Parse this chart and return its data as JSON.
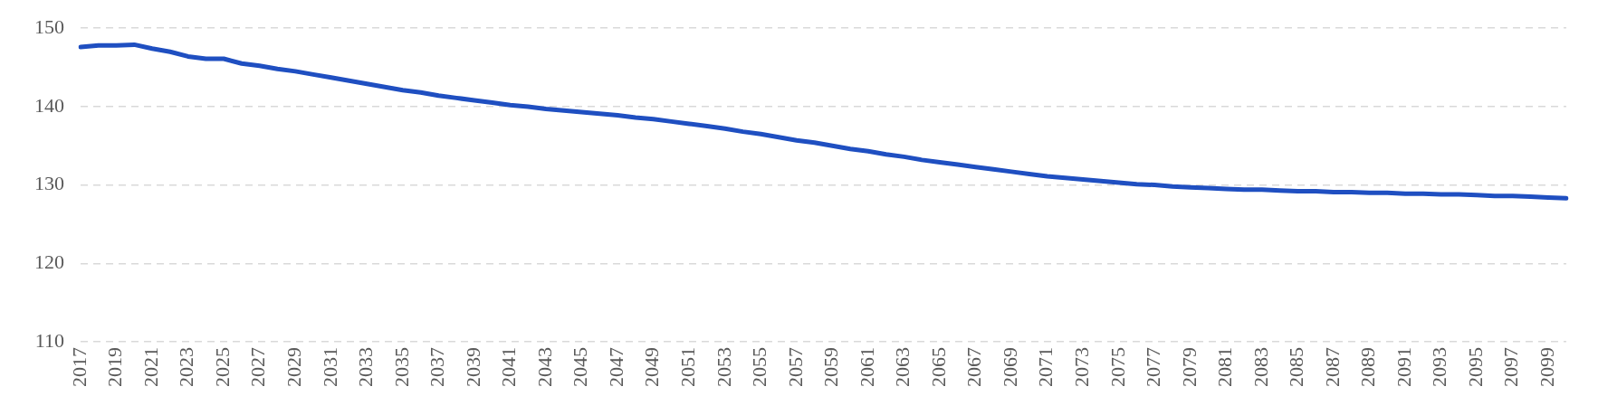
{
  "chart_data": {
    "type": "line",
    "categories": [
      "2017",
      null,
      "2019",
      null,
      "2021",
      null,
      "2023",
      null,
      "2025",
      null,
      "2027",
      null,
      "2029",
      null,
      "2031",
      null,
      "2033",
      null,
      "2035",
      null,
      "2037",
      null,
      "2039",
      null,
      "2041",
      null,
      "2043",
      null,
      "2045",
      null,
      "2047",
      null,
      "2049",
      null,
      "2051",
      null,
      "2053",
      null,
      "2055",
      null,
      "2057",
      null,
      "2059",
      null,
      "2061",
      null,
      "2063",
      null,
      "2065",
      null,
      "2067",
      null,
      "2069",
      null,
      "2071",
      null,
      "2073",
      null,
      "2075",
      null,
      "2077",
      null,
      "2079",
      null,
      "2081",
      null,
      "2083",
      null,
      "2085",
      null,
      "2087",
      null,
      "2089",
      null,
      "2091",
      null,
      "2093",
      null,
      "2095",
      null,
      "2097",
      null,
      "2099",
      null
    ],
    "series": [
      {
        "color": "#1f4fc1",
        "values": [
          147.6,
          147.8,
          147.8,
          147.9,
          147.4,
          147.0,
          146.4,
          146.1,
          146.1,
          145.5,
          145.2,
          144.8,
          144.5,
          144.1,
          143.7,
          143.3,
          142.9,
          142.5,
          142.1,
          141.8,
          141.4,
          141.1,
          140.8,
          140.5,
          140.2,
          140.0,
          139.7,
          139.5,
          139.3,
          139.1,
          138.9,
          138.6,
          138.4,
          138.1,
          137.8,
          137.5,
          137.2,
          136.8,
          136.5,
          136.1,
          135.7,
          135.4,
          135.0,
          134.6,
          134.3,
          133.9,
          133.6,
          133.2,
          132.9,
          132.6,
          132.3,
          132.0,
          131.7,
          131.4,
          131.1,
          130.9,
          130.7,
          130.5,
          130.3,
          130.1,
          130.0,
          129.8,
          129.7,
          129.6,
          129.5,
          129.4,
          129.4,
          129.3,
          129.2,
          129.2,
          129.1,
          129.1,
          129.0,
          129.0,
          128.9,
          128.9,
          128.8,
          128.8,
          128.7,
          128.6,
          128.6,
          128.5,
          128.4,
          128.3
        ]
      }
    ],
    "ylim": [
      110,
      150
    ],
    "yticks": [
      110,
      120,
      130,
      140,
      150
    ],
    "grid": "y",
    "legend": false,
    "marker": "none",
    "line_style": "solid"
  }
}
